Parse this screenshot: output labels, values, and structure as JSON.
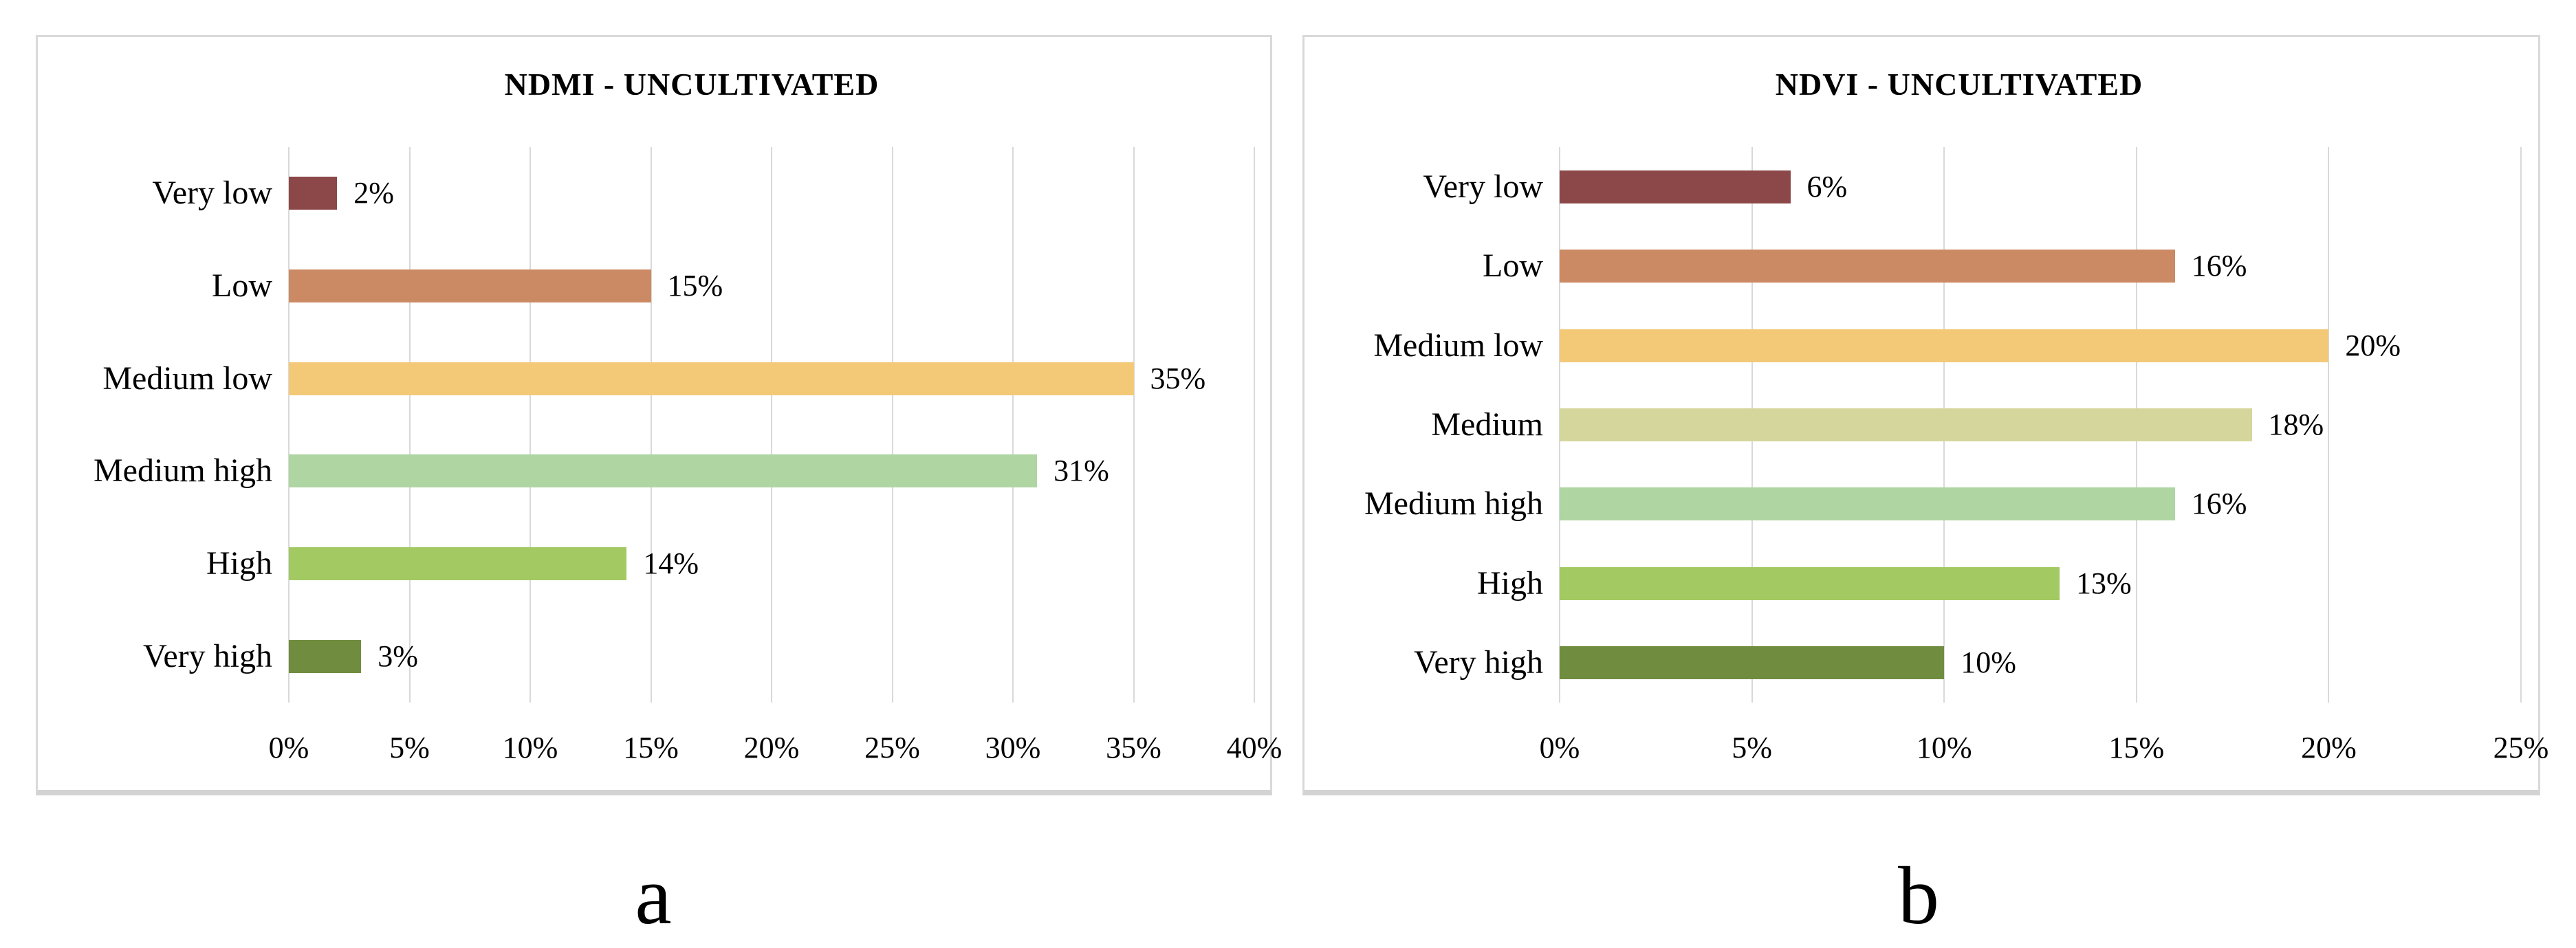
{
  "colors": {
    "background": "#FFFFFF",
    "text": "#000000",
    "grid": "#D9D9D9",
    "panel_border": "#D9D9D9",
    "panel_border_bottom": "#D3D3D3"
  },
  "chart_data": [
    {
      "id": "ndmi-uncultivated",
      "type": "bar",
      "orientation": "horizontal",
      "title": "NDMI - UNCULTIVATED",
      "panel_label": "a",
      "categories": [
        "Very low",
        "Low",
        "Medium low",
        "Medium high",
        "High",
        "Very high"
      ],
      "values": [
        2,
        15,
        35,
        31,
        14,
        3
      ],
      "value_labels": [
        "2%",
        "15%",
        "35%",
        "31%",
        "14%",
        "3%"
      ],
      "bar_colors": [
        "#8C4848",
        "#CB8A64",
        "#F3C978",
        "#AED5A2",
        "#A3C963",
        "#708C3F"
      ],
      "axis": {
        "min": 0,
        "max": 40,
        "step": 5,
        "tick_labels": [
          "0%",
          "5%",
          "10%",
          "15%",
          "20%",
          "25%",
          "30%",
          "35%",
          "40%"
        ]
      },
      "grid": true,
      "legend": false,
      "xlabel": "",
      "ylabel": ""
    },
    {
      "id": "ndvi-uncultivated",
      "type": "bar",
      "orientation": "horizontal",
      "title": "NDVI - UNCULTIVATED",
      "panel_label": "b",
      "categories": [
        "Very low",
        "Low",
        "Medium low",
        "Medium",
        "Medium high",
        "High",
        "Very high"
      ],
      "values": [
        6,
        16,
        20,
        18,
        16,
        13,
        10
      ],
      "value_labels": [
        "6%",
        "16%",
        "20%",
        "18%",
        "16%",
        "13%",
        "10%"
      ],
      "bar_colors": [
        "#8C4848",
        "#CB8A64",
        "#F3C978",
        "#D4D69C",
        "#AED5A2",
        "#A3C963",
        "#708C3F"
      ],
      "axis": {
        "min": 0,
        "max": 25,
        "step": 5,
        "tick_labels": [
          "0%",
          "5%",
          "10%",
          "15%",
          "20%",
          "25%"
        ]
      },
      "grid": true,
      "legend": false,
      "xlabel": "",
      "ylabel": ""
    }
  ]
}
